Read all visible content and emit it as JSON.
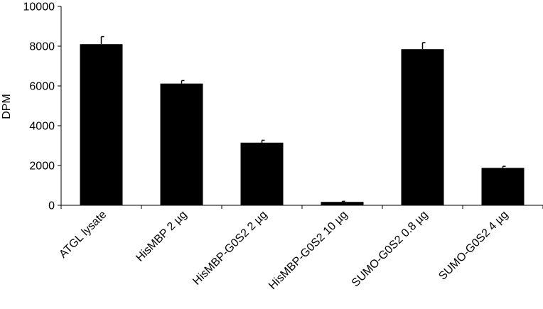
{
  "chart_data": {
    "type": "bar",
    "title": "",
    "xlabel": "",
    "ylabel": "DPM",
    "ylim": [
      0,
      10000
    ],
    "yticks": [
      0,
      2000,
      4000,
      6000,
      8000,
      10000
    ],
    "grid": false,
    "legend": "none",
    "categories": [
      "ATGL lysate",
      "HisMBP 2 µg",
      "HisMBP-G0S2 2 µg",
      "HisMBP-G0S2 10 µg",
      "SUMO-G0S2 0.8 µg",
      "SUMO-G0S2 4 µg"
    ],
    "values": [
      8100,
      6120,
      3150,
      170,
      7850,
      1880
    ],
    "errors": [
      380,
      150,
      120,
      30,
      330,
      80
    ],
    "bar_color": "#000000"
  }
}
